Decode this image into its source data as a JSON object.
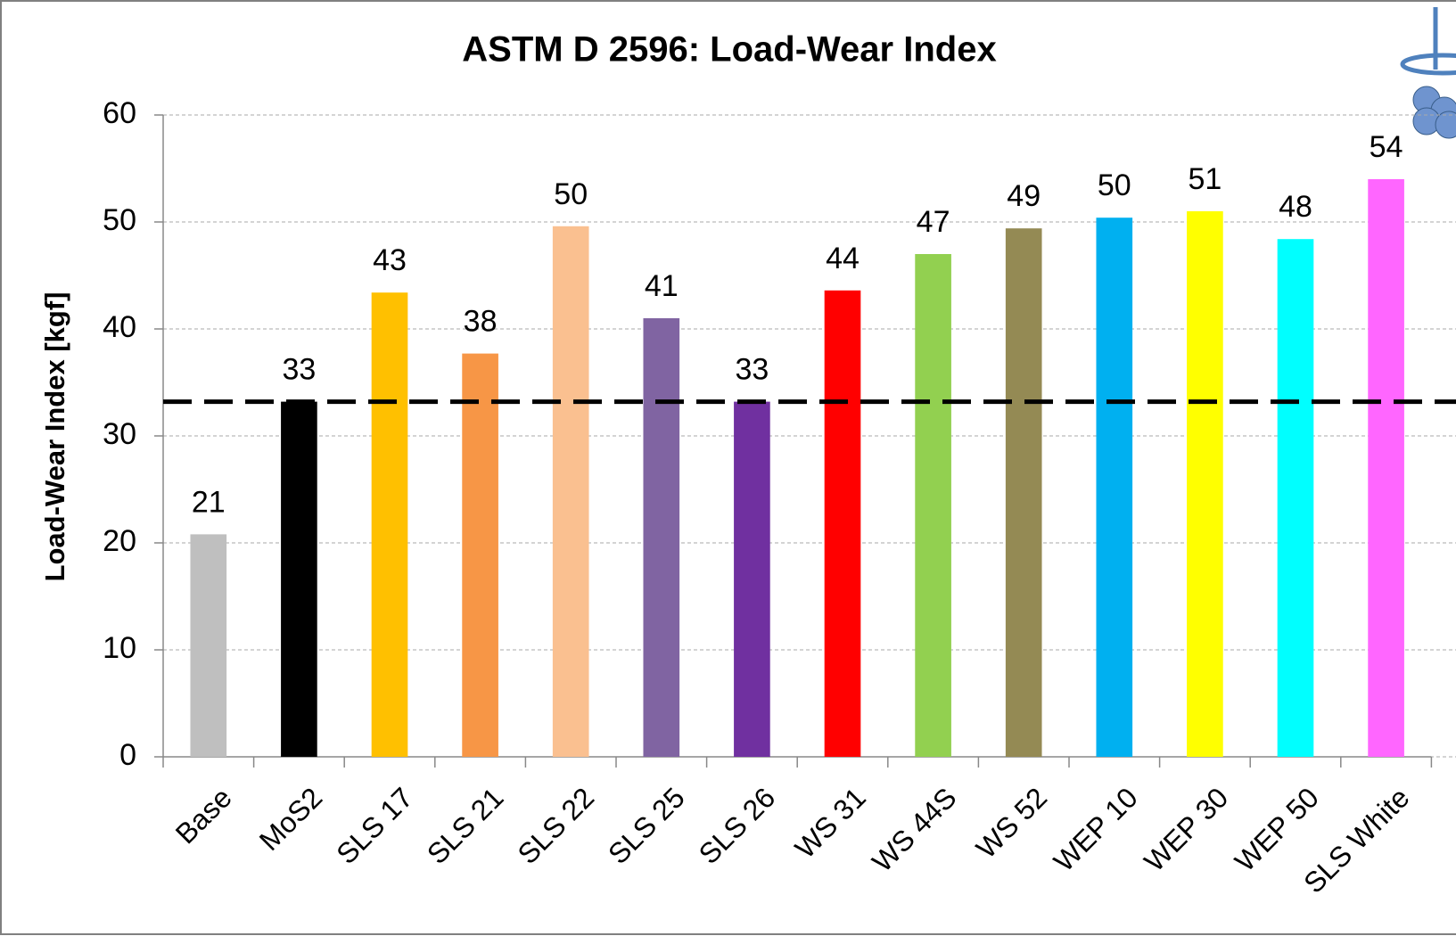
{
  "chart_data": {
    "type": "bar",
    "title": "ASTM D 2596: Load-Wear Index",
    "y_label": "Load-Wear Index [kgf]",
    "categories": [
      "Base",
      "MoS2",
      "SLS 17",
      "SLS 21",
      "SLS 22",
      "SLS 25",
      "SLS 26",
      "WS 31",
      "WS 44S",
      "WS 52",
      "WEP 10",
      "WEP 30",
      "WEP 50",
      "SLS White"
    ],
    "values": [
      20.8,
      33.2,
      43.4,
      37.7,
      49.6,
      41.0,
      33.2,
      43.6,
      47.0,
      49.4,
      50.4,
      51.0,
      48.4,
      54.0
    ],
    "value_labels": [
      "21",
      "33",
      "43",
      "38",
      "50",
      "41",
      "33",
      "44",
      "47",
      "49",
      "50",
      "51",
      "48",
      "54"
    ],
    "colors": [
      "#bfbfbf",
      "#000000",
      "#ffc000",
      "#f79646",
      "#fac090",
      "#8064a2",
      "#7030a0",
      "#ff0000",
      "#92d050",
      "#948a54",
      "#00b0f0",
      "#ffff00",
      "#00ffff",
      "#ff66ff"
    ],
    "reference_line": 33.2,
    "ylim": [
      0,
      60
    ],
    "yticks": [
      0,
      10,
      20,
      30,
      40,
      50,
      60
    ],
    "grid": true
  }
}
